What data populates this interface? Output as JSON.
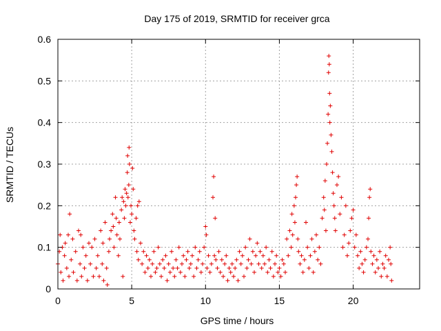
{
  "chart_data": {
    "type": "scatter",
    "title": "Day 175 of 2019, SRMTID for receiver grca",
    "xlabel": "GPS time / hours",
    "ylabel": "SRMTID / TECUs",
    "xlim": [
      0,
      24.5
    ],
    "ylim": [
      0,
      0.6
    ],
    "xticks": [
      0,
      5,
      10,
      15,
      20
    ],
    "yticks": [
      0,
      0.1,
      0.2,
      0.3,
      0.4,
      0.5,
      0.6
    ],
    "grid": true,
    "marker": "+",
    "color": "#e00000",
    "series": [
      {
        "name": "grca",
        "points": [
          [
            0.0,
            0.06
          ],
          [
            0.1,
            0.09
          ],
          [
            0.15,
            0.13
          ],
          [
            0.2,
            0.04
          ],
          [
            0.3,
            0.1
          ],
          [
            0.35,
            0.02
          ],
          [
            0.45,
            0.08
          ],
          [
            0.5,
            0.11
          ],
          [
            0.6,
            0.05
          ],
          [
            0.7,
            0.13
          ],
          [
            0.75,
            0.03
          ],
          [
            0.8,
            0.18
          ],
          [
            0.9,
            0.07
          ],
          [
            1.0,
            0.12
          ],
          [
            1.05,
            0.04
          ],
          [
            1.2,
            0.09
          ],
          [
            1.3,
            0.02
          ],
          [
            1.4,
            0.14
          ],
          [
            1.5,
            0.06
          ],
          [
            1.55,
            0.13
          ],
          [
            1.6,
            0.03
          ],
          [
            1.7,
            0.1
          ],
          [
            1.8,
            0.05
          ],
          [
            1.9,
            0.08
          ],
          [
            2.0,
            0.02
          ],
          [
            2.1,
            0.11
          ],
          [
            2.2,
            0.06
          ],
          [
            2.3,
            0.1
          ],
          [
            2.4,
            0.03
          ],
          [
            2.5,
            0.12
          ],
          [
            2.6,
            0.05
          ],
          [
            2.7,
            0.08
          ],
          [
            2.8,
            0.03
          ],
          [
            2.9,
            0.14
          ],
          [
            3.0,
            0.06
          ],
          [
            3.05,
            0.11
          ],
          [
            3.1,
            0.02
          ],
          [
            3.2,
            0.16
          ],
          [
            3.3,
            0.05
          ],
          [
            3.35,
            0.01
          ],
          [
            3.45,
            0.09
          ],
          [
            3.5,
            0.12
          ],
          [
            3.6,
            0.14
          ],
          [
            3.7,
            0.18
          ],
          [
            3.75,
            0.15
          ],
          [
            3.8,
            0.1
          ],
          [
            3.9,
            0.22
          ],
          [
            3.95,
            0.17
          ],
          [
            4.0,
            0.13
          ],
          [
            4.1,
            0.08
          ],
          [
            4.15,
            0.16
          ],
          [
            4.2,
            0.12
          ],
          [
            4.3,
            0.19
          ],
          [
            4.35,
            0.22
          ],
          [
            4.4,
            0.03
          ],
          [
            4.45,
            0.21
          ],
          [
            4.5,
            0.17
          ],
          [
            4.55,
            0.24
          ],
          [
            4.6,
            0.2
          ],
          [
            4.65,
            0.23
          ],
          [
            4.7,
            0.28
          ],
          [
            4.72,
            0.32
          ],
          [
            4.75,
            0.22
          ],
          [
            4.8,
            0.25
          ],
          [
            4.82,
            0.34
          ],
          [
            4.85,
            0.3
          ],
          [
            4.9,
            0.16
          ],
          [
            4.95,
            0.2
          ],
          [
            5.0,
            0.18
          ],
          [
            5.05,
            0.29
          ],
          [
            5.1,
            0.24
          ],
          [
            5.15,
            0.14
          ],
          [
            5.2,
            0.12
          ],
          [
            5.3,
            0.17
          ],
          [
            5.35,
            0.09
          ],
          [
            5.4,
            0.2
          ],
          [
            5.45,
            0.07
          ],
          [
            5.5,
            0.21
          ],
          [
            5.6,
            0.11
          ],
          [
            5.7,
            0.06
          ],
          [
            5.8,
            0.09
          ],
          [
            5.9,
            0.04
          ],
          [
            6.0,
            0.08
          ],
          [
            6.1,
            0.05
          ],
          [
            6.2,
            0.07
          ],
          [
            6.3,
            0.03
          ],
          [
            6.4,
            0.06
          ],
          [
            6.5,
            0.09
          ],
          [
            6.6,
            0.04
          ],
          [
            6.7,
            0.05
          ],
          [
            6.8,
            0.1
          ],
          [
            6.9,
            0.06
          ],
          [
            7.0,
            0.03
          ],
          [
            7.1,
            0.07
          ],
          [
            7.2,
            0.05
          ],
          [
            7.3,
            0.08
          ],
          [
            7.4,
            0.02
          ],
          [
            7.5,
            0.06
          ],
          [
            7.6,
            0.04
          ],
          [
            7.7,
            0.09
          ],
          [
            7.8,
            0.05
          ],
          [
            7.9,
            0.03
          ],
          [
            8.0,
            0.07
          ],
          [
            8.1,
            0.05
          ],
          [
            8.2,
            0.1
          ],
          [
            8.3,
            0.04
          ],
          [
            8.4,
            0.06
          ],
          [
            8.5,
            0.08
          ],
          [
            8.6,
            0.03
          ],
          [
            8.7,
            0.07
          ],
          [
            8.8,
            0.09
          ],
          [
            8.9,
            0.05
          ],
          [
            9.0,
            0.06
          ],
          [
            9.1,
            0.08
          ],
          [
            9.2,
            0.03
          ],
          [
            9.3,
            0.1
          ],
          [
            9.4,
            0.05
          ],
          [
            9.5,
            0.07
          ],
          [
            9.6,
            0.09
          ],
          [
            9.7,
            0.04
          ],
          [
            9.8,
            0.06
          ],
          [
            9.9,
            0.1
          ],
          [
            10.0,
            0.15
          ],
          [
            10.05,
            0.13
          ],
          [
            10.1,
            0.05
          ],
          [
            10.2,
            0.08
          ],
          [
            10.3,
            0.04
          ],
          [
            10.4,
            0.06
          ],
          [
            10.5,
            0.22
          ],
          [
            10.55,
            0.27
          ],
          [
            10.6,
            0.08
          ],
          [
            10.65,
            0.17
          ],
          [
            10.7,
            0.07
          ],
          [
            10.8,
            0.05
          ],
          [
            10.9,
            0.09
          ],
          [
            11.0,
            0.04
          ],
          [
            11.1,
            0.07
          ],
          [
            11.2,
            0.03
          ],
          [
            11.3,
            0.06
          ],
          [
            11.4,
            0.08
          ],
          [
            11.5,
            0.02
          ],
          [
            11.6,
            0.05
          ],
          [
            11.7,
            0.04
          ],
          [
            11.8,
            0.06
          ],
          [
            11.9,
            0.03
          ],
          [
            12.0,
            0.05
          ],
          [
            12.1,
            0.07
          ],
          [
            12.2,
            0.02
          ],
          [
            12.3,
            0.09
          ],
          [
            12.4,
            0.06
          ],
          [
            12.5,
            0.08
          ],
          [
            12.6,
            0.03
          ],
          [
            12.7,
            0.1
          ],
          [
            12.8,
            0.05
          ],
          [
            12.9,
            0.07
          ],
          [
            13.0,
            0.12
          ],
          [
            13.1,
            0.06
          ],
          [
            13.2,
            0.09
          ],
          [
            13.3,
            0.04
          ],
          [
            13.4,
            0.08
          ],
          [
            13.5,
            0.11
          ],
          [
            13.6,
            0.06
          ],
          [
            13.7,
            0.09
          ],
          [
            13.8,
            0.05
          ],
          [
            13.9,
            0.08
          ],
          [
            14.0,
            0.06
          ],
          [
            14.1,
            0.1
          ],
          [
            14.2,
            0.04
          ],
          [
            14.3,
            0.07
          ],
          [
            14.4,
            0.05
          ],
          [
            14.5,
            0.09
          ],
          [
            14.6,
            0.03
          ],
          [
            14.7,
            0.06
          ],
          [
            14.8,
            0.08
          ],
          [
            14.9,
            0.04
          ],
          [
            15.0,
            0.05
          ],
          [
            15.1,
            0.03
          ],
          [
            15.2,
            0.07
          ],
          [
            15.3,
            0.06
          ],
          [
            15.4,
            0.04
          ],
          [
            15.5,
            0.12
          ],
          [
            15.6,
            0.08
          ],
          [
            15.7,
            0.14
          ],
          [
            15.8,
            0.1
          ],
          [
            15.85,
            0.18
          ],
          [
            15.9,
            0.13
          ],
          [
            16.0,
            0.2
          ],
          [
            16.05,
            0.16
          ],
          [
            16.1,
            0.22
          ],
          [
            16.15,
            0.25
          ],
          [
            16.2,
            0.27
          ],
          [
            16.25,
            0.12
          ],
          [
            16.3,
            0.09
          ],
          [
            16.4,
            0.06
          ],
          [
            16.5,
            0.08
          ],
          [
            16.6,
            0.04
          ],
          [
            16.7,
            0.07
          ],
          [
            16.8,
            0.16
          ],
          [
            16.9,
            0.1
          ],
          [
            17.0,
            0.05
          ],
          [
            17.1,
            0.08
          ],
          [
            17.2,
            0.12
          ],
          [
            17.3,
            0.04
          ],
          [
            17.4,
            0.09
          ],
          [
            17.5,
            0.13
          ],
          [
            17.6,
            0.07
          ],
          [
            17.7,
            0.1
          ],
          [
            17.8,
            0.06
          ],
          [
            17.9,
            0.17
          ],
          [
            18.0,
            0.22
          ],
          [
            18.05,
            0.19
          ],
          [
            18.1,
            0.26
          ],
          [
            18.15,
            0.14
          ],
          [
            18.2,
            0.3
          ],
          [
            18.25,
            0.35
          ],
          [
            18.3,
            0.42
          ],
          [
            18.33,
            0.52
          ],
          [
            18.35,
            0.56
          ],
          [
            18.38,
            0.54
          ],
          [
            18.4,
            0.47
          ],
          [
            18.42,
            0.4
          ],
          [
            18.45,
            0.44
          ],
          [
            18.5,
            0.37
          ],
          [
            18.55,
            0.33
          ],
          [
            18.6,
            0.28
          ],
          [
            18.65,
            0.23
          ],
          [
            18.7,
            0.2
          ],
          [
            18.75,
            0.17
          ],
          [
            18.8,
            0.14
          ],
          [
            18.9,
            0.25
          ],
          [
            19.0,
            0.27
          ],
          [
            19.1,
            0.18
          ],
          [
            19.2,
            0.22
          ],
          [
            19.3,
            0.1
          ],
          [
            19.4,
            0.13
          ],
          [
            19.5,
            0.2
          ],
          [
            19.6,
            0.08
          ],
          [
            19.7,
            0.11
          ],
          [
            19.8,
            0.14
          ],
          [
            19.9,
            0.17
          ],
          [
            20.0,
            0.19
          ],
          [
            20.1,
            0.1
          ],
          [
            20.2,
            0.13
          ],
          [
            20.3,
            0.08
          ],
          [
            20.4,
            0.05
          ],
          [
            20.5,
            0.09
          ],
          [
            20.6,
            0.06
          ],
          [
            20.7,
            0.04
          ],
          [
            20.8,
            0.07
          ],
          [
            20.9,
            0.1
          ],
          [
            21.0,
            0.12
          ],
          [
            21.05,
            0.17
          ],
          [
            21.1,
            0.22
          ],
          [
            21.15,
            0.24
          ],
          [
            21.2,
            0.09
          ],
          [
            21.3,
            0.06
          ],
          [
            21.4,
            0.08
          ],
          [
            21.5,
            0.04
          ],
          [
            21.6,
            0.07
          ],
          [
            21.7,
            0.05
          ],
          [
            21.8,
            0.09
          ],
          [
            21.9,
            0.03
          ],
          [
            22.0,
            0.06
          ],
          [
            22.1,
            0.05
          ],
          [
            22.2,
            0.08
          ],
          [
            22.3,
            0.03
          ],
          [
            22.4,
            0.07
          ],
          [
            22.5,
            0.1
          ],
          [
            22.55,
            0.06
          ],
          [
            22.6,
            0.02
          ]
        ]
      }
    ]
  }
}
